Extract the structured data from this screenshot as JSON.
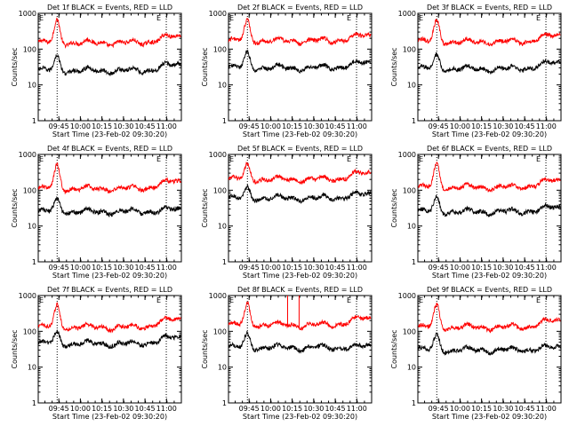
{
  "chart_data": {
    "type": "line",
    "layout": "3x3 grid",
    "y_scale": "log",
    "ylim": [
      1,
      1000
    ],
    "ytick_labels": [
      "1",
      "10",
      "100",
      "1000"
    ],
    "ylabel": "Counts/sec",
    "xlabel": "Start Time (23-Feb-02 09:30:20)",
    "xtick_labels": [
      "09:45",
      "10:00",
      "10:15",
      "10:30",
      "10:45",
      "11:00"
    ],
    "xlim_minutes_after_0930": [
      0.33,
      100
    ],
    "vertical_markers_minutes_after_0930": [
      13.5,
      89.5
    ],
    "marker_labels": [
      "E",
      "E"
    ],
    "grid": false,
    "legend": "none",
    "colors": {
      "events": "#000000",
      "lld": "#ff0000",
      "marker": "#000000"
    },
    "series_names": [
      "Events",
      "LLD"
    ],
    "panels": [
      {
        "title": "Det 1f BLACK = Events, RED = LLD",
        "events": {
          "base": 25,
          "peak": 60,
          "end": 35
        },
        "lld": {
          "base": 150,
          "peak": 600,
          "end": 220
        },
        "spikes": []
      },
      {
        "title": "Det 2f BLACK = Events, RED = LLD",
        "events": {
          "base": 30,
          "peak": 75,
          "end": 40
        },
        "lld": {
          "base": 170,
          "peak": 600,
          "end": 230
        },
        "spikes": []
      },
      {
        "title": "Det 3f BLACK = Events, RED = LLD",
        "events": {
          "base": 28,
          "peak": 65,
          "end": 40
        },
        "lld": {
          "base": 160,
          "peak": 600,
          "end": 230
        },
        "spikes": []
      },
      {
        "title": "Det 4f BLACK = Events, RED = LLD",
        "events": {
          "base": 25,
          "peak": 55,
          "end": 28
        },
        "lld": {
          "base": 110,
          "peak": 480,
          "end": 170
        },
        "spikes": []
      },
      {
        "title": "Det 5f BLACK = Events, RED = LLD",
        "events": {
          "base": 60,
          "peak": 110,
          "end": 75
        },
        "lld": {
          "base": 200,
          "peak": 500,
          "end": 290
        },
        "spikes": []
      },
      {
        "title": "Det 6f BLACK = Events, RED = LLD",
        "events": {
          "base": 25,
          "peak": 60,
          "end": 32
        },
        "lld": {
          "base": 120,
          "peak": 550,
          "end": 180
        },
        "spikes": []
      },
      {
        "title": "Det 7f BLACK = Events, RED = LLD",
        "events": {
          "base": 45,
          "peak": 90,
          "end": 65
        },
        "lld": {
          "base": 130,
          "peak": 500,
          "end": 210
        },
        "spikes": []
      },
      {
        "title": "Det 8f BLACK = Events, RED = LLD",
        "events": {
          "base": 35,
          "peak": 80,
          "end": 38
        },
        "lld": {
          "base": 150,
          "peak": 550,
          "end": 220
        },
        "spikes": [
          {
            "x": 41.5,
            "y": 1000
          },
          {
            "x": 49.5,
            "y": 1000
          }
        ]
      },
      {
        "title": "Det 9f BLACK = Events, RED = LLD",
        "events": {
          "base": 30,
          "peak": 75,
          "end": 35
        },
        "lld": {
          "base": 130,
          "peak": 520,
          "end": 190
        },
        "spikes": []
      }
    ]
  }
}
